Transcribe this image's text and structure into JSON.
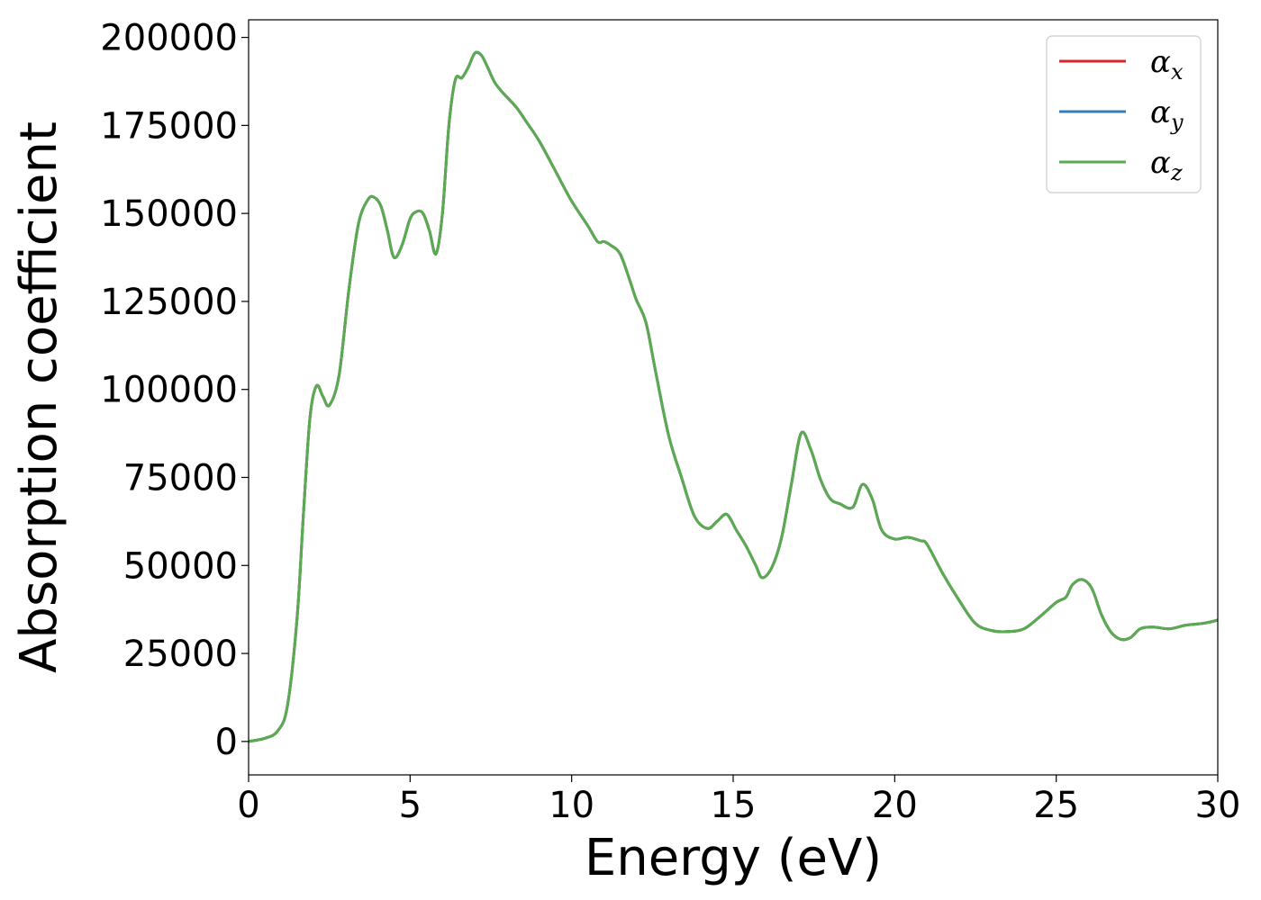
{
  "chart_data": {
    "type": "line",
    "title": "",
    "xlabel": "Energy (eV)",
    "ylabel": "Absorption coefficient",
    "xlim": [
      0,
      30
    ],
    "ylim": [
      -9500,
      205000
    ],
    "xticks": [
      0,
      5,
      10,
      15,
      20,
      25,
      30
    ],
    "yticks": [
      0,
      25000,
      50000,
      75000,
      100000,
      125000,
      150000,
      175000,
      200000
    ],
    "grid": false,
    "legend_position": "top-right",
    "series": [
      {
        "name": "α",
        "subscript": "x",
        "color": "#d62728",
        "x": [
          0,
          0.5,
          0.9,
          1.2,
          1.5,
          1.7,
          1.9,
          2.1,
          2.3,
          2.5,
          2.8,
          3.1,
          3.4,
          3.7,
          3.9,
          4.1,
          4.3,
          4.5,
          4.75,
          5.0,
          5.2,
          5.4,
          5.6,
          5.8,
          6.0,
          6.2,
          6.4,
          6.6,
          6.8,
          7.0,
          7.2,
          7.4,
          7.6,
          7.8,
          8.0,
          8.3,
          8.6,
          9.0,
          9.5,
          10.0,
          10.5,
          10.8,
          11.0,
          11.2,
          11.5,
          11.8,
          12.0,
          12.3,
          12.6,
          13.0,
          13.4,
          13.8,
          14.2,
          14.5,
          14.8,
          15.1,
          15.4,
          15.7,
          15.9,
          16.2,
          16.5,
          16.8,
          17.1,
          17.4,
          17.7,
          18.0,
          18.3,
          18.7,
          19.0,
          19.3,
          19.6,
          20.0,
          20.4,
          20.8,
          21.0,
          21.5,
          22.0,
          22.5,
          23.0,
          23.5,
          24.0,
          24.5,
          25.0,
          25.3,
          25.5,
          25.8,
          26.1,
          26.4,
          26.7,
          27.0,
          27.3,
          27.6,
          28.0,
          28.5,
          29.0,
          29.5,
          29.8,
          30.0
        ],
        "values": [
          0,
          900,
          3000,
          10000,
          35000,
          65000,
          92000,
          101000,
          98000,
          95500,
          104000,
          128000,
          147000,
          154000,
          154500,
          152000,
          145000,
          137500,
          141000,
          148500,
          150500,
          150000,
          145000,
          138500,
          150000,
          175000,
          188000,
          188500,
          191500,
          195500,
          195000,
          191500,
          187500,
          185000,
          183000,
          180000,
          176000,
          170500,
          162000,
          153500,
          146500,
          142000,
          142000,
          141000,
          138500,
          131000,
          125500,
          119000,
          105000,
          87000,
          75000,
          64000,
          60500,
          62500,
          64500,
          60000,
          55500,
          50000,
          46500,
          49500,
          58000,
          73000,
          87500,
          83000,
          74500,
          69000,
          67500,
          66500,
          73000,
          69000,
          60000,
          57500,
          58000,
          57000,
          56000,
          47500,
          40000,
          33500,
          31500,
          31200,
          32000,
          35500,
          39500,
          41000,
          44500,
          46000,
          43500,
          36000,
          31000,
          29000,
          29500,
          32000,
          32500,
          32000,
          33000,
          33500,
          34000,
          34500
        ]
      },
      {
        "name": "α",
        "subscript": "y",
        "color": "#377eb8",
        "x": [
          0,
          0.5,
          0.9,
          1.2,
          1.5,
          1.7,
          1.9,
          2.1,
          2.3,
          2.5,
          2.8,
          3.1,
          3.4,
          3.7,
          3.9,
          4.1,
          4.3,
          4.5,
          4.75,
          5.0,
          5.2,
          5.4,
          5.6,
          5.8,
          6.0,
          6.2,
          6.4,
          6.6,
          6.8,
          7.0,
          7.2,
          7.4,
          7.6,
          7.8,
          8.0,
          8.3,
          8.6,
          9.0,
          9.5,
          10.0,
          10.5,
          10.8,
          11.0,
          11.2,
          11.5,
          11.8,
          12.0,
          12.3,
          12.6,
          13.0,
          13.4,
          13.8,
          14.2,
          14.5,
          14.8,
          15.1,
          15.4,
          15.7,
          15.9,
          16.2,
          16.5,
          16.8,
          17.1,
          17.4,
          17.7,
          18.0,
          18.3,
          18.7,
          19.0,
          19.3,
          19.6,
          20.0,
          20.4,
          20.8,
          21.0,
          21.5,
          22.0,
          22.5,
          23.0,
          23.5,
          24.0,
          24.5,
          25.0,
          25.3,
          25.5,
          25.8,
          26.1,
          26.4,
          26.7,
          27.0,
          27.3,
          27.6,
          28.0,
          28.5,
          29.0,
          29.5,
          29.8,
          30.0
        ],
        "values": [
          0,
          900,
          3000,
          10000,
          35000,
          65000,
          92000,
          101000,
          98000,
          95500,
          104000,
          128000,
          147000,
          154000,
          154500,
          152000,
          145000,
          137500,
          141000,
          148500,
          150500,
          150000,
          145000,
          138500,
          150000,
          175000,
          188000,
          188500,
          191500,
          195500,
          195000,
          191500,
          187500,
          185000,
          183000,
          180000,
          176000,
          170500,
          162000,
          153500,
          146500,
          142000,
          142000,
          141000,
          138500,
          131000,
          125500,
          119000,
          105000,
          87000,
          75000,
          64000,
          60500,
          62500,
          64500,
          60000,
          55500,
          50000,
          46500,
          49500,
          58000,
          73000,
          87500,
          83000,
          74500,
          69000,
          67500,
          66500,
          73000,
          69000,
          60000,
          57500,
          58000,
          57000,
          56000,
          47500,
          40000,
          33500,
          31500,
          31200,
          32000,
          35500,
          39500,
          41000,
          44500,
          46000,
          43500,
          36000,
          31000,
          29000,
          29500,
          32000,
          32500,
          32000,
          33000,
          33500,
          34000,
          34500
        ]
      },
      {
        "name": "α",
        "subscript": "z",
        "color": "#5aab4f",
        "x": [
          0,
          0.5,
          0.9,
          1.2,
          1.5,
          1.7,
          1.9,
          2.1,
          2.3,
          2.5,
          2.8,
          3.1,
          3.4,
          3.7,
          3.9,
          4.1,
          4.3,
          4.5,
          4.75,
          5.0,
          5.2,
          5.4,
          5.6,
          5.8,
          6.0,
          6.2,
          6.4,
          6.6,
          6.8,
          7.0,
          7.2,
          7.4,
          7.6,
          7.8,
          8.0,
          8.3,
          8.6,
          9.0,
          9.5,
          10.0,
          10.5,
          10.8,
          11.0,
          11.2,
          11.5,
          11.8,
          12.0,
          12.3,
          12.6,
          13.0,
          13.4,
          13.8,
          14.2,
          14.5,
          14.8,
          15.1,
          15.4,
          15.7,
          15.9,
          16.2,
          16.5,
          16.8,
          17.1,
          17.4,
          17.7,
          18.0,
          18.3,
          18.7,
          19.0,
          19.3,
          19.6,
          20.0,
          20.4,
          20.8,
          21.0,
          21.5,
          22.0,
          22.5,
          23.0,
          23.5,
          24.0,
          24.5,
          25.0,
          25.3,
          25.5,
          25.8,
          26.1,
          26.4,
          26.7,
          27.0,
          27.3,
          27.6,
          28.0,
          28.5,
          29.0,
          29.5,
          29.8,
          30.0
        ],
        "values": [
          0,
          900,
          3000,
          10000,
          35000,
          65000,
          92000,
          101000,
          98000,
          95500,
          104000,
          128000,
          147000,
          154000,
          154500,
          152000,
          145000,
          137500,
          141000,
          148500,
          150500,
          150000,
          145000,
          138500,
          150000,
          175000,
          188000,
          188500,
          191500,
          195500,
          195000,
          191500,
          187500,
          185000,
          183000,
          180000,
          176000,
          170500,
          162000,
          153500,
          146500,
          142000,
          142000,
          141000,
          138500,
          131000,
          125500,
          119000,
          105000,
          87000,
          75000,
          64000,
          60500,
          62500,
          64500,
          60000,
          55500,
          50000,
          46500,
          49500,
          58000,
          73000,
          87500,
          83000,
          74500,
          69000,
          67500,
          66500,
          73000,
          69000,
          60000,
          57500,
          58000,
          57000,
          56000,
          47500,
          40000,
          33500,
          31500,
          31200,
          32000,
          35500,
          39500,
          41000,
          44500,
          46000,
          43500,
          36000,
          31000,
          29000,
          29500,
          32000,
          32500,
          32000,
          33000,
          33500,
          34000,
          34500
        ]
      }
    ]
  }
}
